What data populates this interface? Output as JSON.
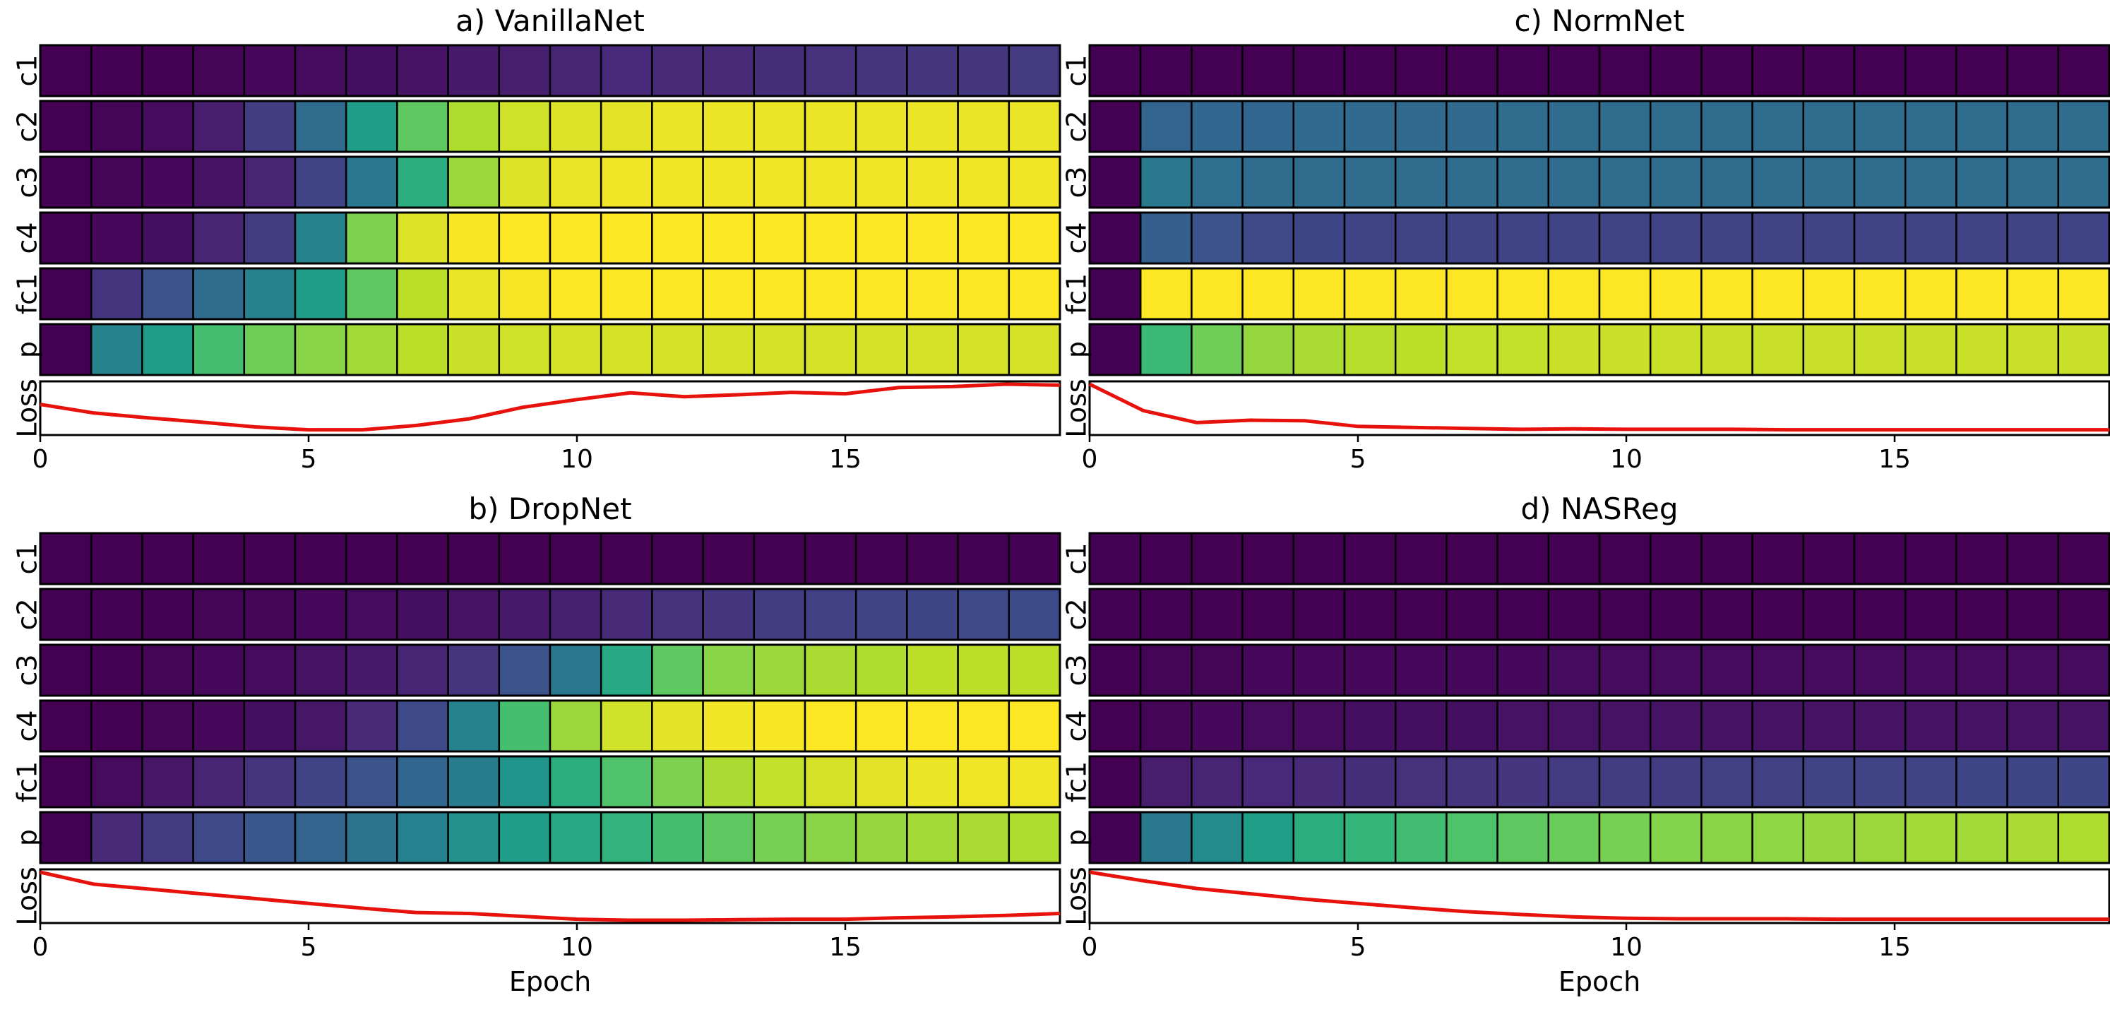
{
  "figure": {
    "row_labels": [
      "c1",
      "c2",
      "c3",
      "c4",
      "fc1",
      "p"
    ],
    "loss_label": "Loss",
    "xlabel": "Epoch",
    "xticks": [
      0,
      5,
      10,
      15
    ],
    "epochs": 19
  },
  "chart_data": [
    {
      "type": "heatmap",
      "panel": "a",
      "title": "a) VanillaNet",
      "xlabel": "",
      "xlim": [
        0,
        19
      ],
      "rows": {
        "c1": [
          0.0,
          0.0,
          0.0,
          0.01,
          0.02,
          0.03,
          0.04,
          0.05,
          0.07,
          0.08,
          0.1,
          0.11,
          0.12,
          0.12,
          0.13,
          0.14,
          0.15,
          0.16,
          0.16,
          0.17
        ],
        "c2": [
          0.0,
          0.01,
          0.03,
          0.08,
          0.18,
          0.35,
          0.55,
          0.75,
          0.88,
          0.93,
          0.95,
          0.96,
          0.97,
          0.97,
          0.97,
          0.97,
          0.97,
          0.97,
          0.97,
          0.97
        ],
        "c3": [
          0.0,
          0.01,
          0.02,
          0.05,
          0.1,
          0.2,
          0.4,
          0.62,
          0.85,
          0.95,
          0.97,
          0.98,
          0.98,
          0.98,
          0.98,
          0.98,
          0.98,
          0.98,
          0.98,
          0.98
        ],
        "c4": [
          0.0,
          0.02,
          0.04,
          0.1,
          0.18,
          0.45,
          0.8,
          0.95,
          0.99,
          1.0,
          1.0,
          1.0,
          1.0,
          1.0,
          1.0,
          1.0,
          1.0,
          1.0,
          1.0,
          1.0
        ],
        "fc1": [
          0.0,
          0.15,
          0.25,
          0.35,
          0.45,
          0.55,
          0.75,
          0.9,
          0.97,
          0.99,
          1.0,
          1.0,
          1.0,
          1.0,
          1.0,
          1.0,
          1.0,
          1.0,
          1.0,
          1.0
        ],
        "p": [
          0.0,
          0.45,
          0.55,
          0.7,
          0.78,
          0.82,
          0.86,
          0.9,
          0.92,
          0.93,
          0.94,
          0.94,
          0.94,
          0.94,
          0.94,
          0.94,
          0.94,
          0.94,
          0.94,
          0.94
        ]
      },
      "loss": [
        0.58,
        0.4,
        0.3,
        0.21,
        0.11,
        0.05,
        0.05,
        0.14,
        0.28,
        0.52,
        0.68,
        0.82,
        0.74,
        0.78,
        0.83,
        0.8,
        0.93,
        0.95,
        1.0,
        0.98
      ]
    },
    {
      "type": "heatmap",
      "panel": "b",
      "title": "b) DropNet",
      "xlabel": "Epoch",
      "xlim": [
        0,
        19
      ],
      "rows": {
        "c1": [
          0.0,
          0.0,
          0.0,
          0.0,
          0.0,
          0.0,
          0.0,
          0.0,
          0.0,
          0.0,
          0.0,
          0.0,
          0.0,
          0.0,
          0.0,
          0.0,
          0.0,
          0.0,
          0.0,
          0.0
        ],
        "c2": [
          0.0,
          0.0,
          0.0,
          0.01,
          0.01,
          0.02,
          0.03,
          0.04,
          0.05,
          0.07,
          0.09,
          0.12,
          0.14,
          0.16,
          0.18,
          0.19,
          0.2,
          0.21,
          0.22,
          0.23
        ],
        "c3": [
          0.0,
          0.0,
          0.01,
          0.02,
          0.03,
          0.05,
          0.07,
          0.1,
          0.15,
          0.25,
          0.4,
          0.6,
          0.75,
          0.82,
          0.85,
          0.87,
          0.88,
          0.9,
          0.9,
          0.9
        ],
        "c4": [
          0.0,
          0.0,
          0.01,
          0.02,
          0.04,
          0.06,
          0.12,
          0.22,
          0.45,
          0.7,
          0.85,
          0.93,
          0.96,
          0.98,
          0.99,
          1.0,
          1.0,
          1.0,
          1.0,
          1.0
        ],
        "fc1": [
          0.0,
          0.03,
          0.06,
          0.1,
          0.15,
          0.2,
          0.25,
          0.33,
          0.42,
          0.52,
          0.62,
          0.72,
          0.8,
          0.87,
          0.91,
          0.94,
          0.96,
          0.97,
          0.98,
          0.98
        ],
        "p": [
          0.0,
          0.12,
          0.17,
          0.22,
          0.27,
          0.32,
          0.38,
          0.44,
          0.5,
          0.55,
          0.6,
          0.65,
          0.7,
          0.75,
          0.79,
          0.82,
          0.84,
          0.86,
          0.87,
          0.88
        ]
      },
      "loss": [
        1.0,
        0.75,
        0.65,
        0.55,
        0.45,
        0.35,
        0.25,
        0.16,
        0.14,
        0.08,
        0.02,
        0.0,
        0.0,
        0.01,
        0.02,
        0.02,
        0.05,
        0.07,
        0.1,
        0.14
      ]
    },
    {
      "type": "heatmap",
      "panel": "c",
      "title": "c) NormNet",
      "xlabel": "",
      "xlim": [
        0,
        19
      ],
      "rows": {
        "c1": [
          0.0,
          0.0,
          0.0,
          0.0,
          0.0,
          0.0,
          0.0,
          0.0,
          0.0,
          0.0,
          0.0,
          0.0,
          0.0,
          0.0,
          0.0,
          0.0,
          0.0,
          0.0,
          0.0,
          0.0
        ],
        "c2": [
          0.0,
          0.32,
          0.33,
          0.33,
          0.34,
          0.34,
          0.34,
          0.34,
          0.35,
          0.35,
          0.35,
          0.35,
          0.35,
          0.35,
          0.35,
          0.35,
          0.35,
          0.35,
          0.35,
          0.35
        ],
        "c3": [
          0.0,
          0.4,
          0.36,
          0.35,
          0.35,
          0.35,
          0.35,
          0.35,
          0.35,
          0.35,
          0.35,
          0.35,
          0.35,
          0.35,
          0.35,
          0.35,
          0.35,
          0.35,
          0.35,
          0.35
        ],
        "c4": [
          0.0,
          0.3,
          0.25,
          0.22,
          0.21,
          0.2,
          0.2,
          0.2,
          0.2,
          0.2,
          0.2,
          0.2,
          0.2,
          0.2,
          0.2,
          0.2,
          0.2,
          0.2,
          0.2,
          0.2
        ],
        "fc1": [
          0.0,
          1.0,
          1.0,
          1.0,
          1.0,
          1.0,
          1.0,
          1.0,
          1.0,
          1.0,
          1.0,
          1.0,
          1.0,
          1.0,
          1.0,
          1.0,
          1.0,
          1.0,
          1.0,
          1.0
        ],
        "p": [
          0.0,
          0.68,
          0.78,
          0.84,
          0.87,
          0.89,
          0.9,
          0.91,
          0.91,
          0.92,
          0.92,
          0.92,
          0.92,
          0.92,
          0.92,
          0.92,
          0.92,
          0.92,
          0.92,
          0.92
        ]
      },
      "loss": [
        1.0,
        0.45,
        0.2,
        0.25,
        0.24,
        0.12,
        0.1,
        0.08,
        0.06,
        0.07,
        0.06,
        0.06,
        0.06,
        0.05,
        0.05,
        0.05,
        0.05,
        0.05,
        0.05,
        0.05
      ]
    },
    {
      "type": "heatmap",
      "panel": "d",
      "title": "d) NASReg",
      "xlabel": "Epoch",
      "xlim": [
        0,
        19
      ],
      "rows": {
        "c1": [
          0.0,
          0.0,
          0.0,
          0.0,
          0.0,
          0.0,
          0.0,
          0.0,
          0.0,
          0.0,
          0.0,
          0.0,
          0.0,
          0.0,
          0.0,
          0.0,
          0.0,
          0.0,
          0.0,
          0.0
        ],
        "c2": [
          0.0,
          0.0,
          0.0,
          0.0,
          0.0,
          0.0,
          0.0,
          0.0,
          0.0,
          0.0,
          0.0,
          0.0,
          0.0,
          0.0,
          0.0,
          0.0,
          0.0,
          0.0,
          0.0,
          0.0
        ],
        "c3": [
          0.0,
          0.01,
          0.01,
          0.02,
          0.02,
          0.02,
          0.02,
          0.02,
          0.02,
          0.03,
          0.03,
          0.03,
          0.03,
          0.03,
          0.03,
          0.03,
          0.03,
          0.03,
          0.03,
          0.03
        ],
        "c4": [
          0.0,
          0.01,
          0.02,
          0.03,
          0.03,
          0.04,
          0.04,
          0.04,
          0.05,
          0.05,
          0.05,
          0.05,
          0.05,
          0.05,
          0.05,
          0.05,
          0.05,
          0.05,
          0.05,
          0.05
        ],
        "fc1": [
          0.0,
          0.08,
          0.1,
          0.11,
          0.12,
          0.13,
          0.14,
          0.15,
          0.16,
          0.17,
          0.18,
          0.18,
          0.19,
          0.19,
          0.2,
          0.2,
          0.2,
          0.21,
          0.21,
          0.21
        ],
        "p": [
          0.0,
          0.4,
          0.48,
          0.56,
          0.62,
          0.66,
          0.69,
          0.72,
          0.75,
          0.77,
          0.79,
          0.81,
          0.82,
          0.83,
          0.84,
          0.85,
          0.86,
          0.86,
          0.87,
          0.88
        ]
      },
      "loss": [
        1.0,
        0.82,
        0.66,
        0.55,
        0.44,
        0.35,
        0.26,
        0.18,
        0.12,
        0.07,
        0.04,
        0.03,
        0.03,
        0.03,
        0.02,
        0.02,
        0.02,
        0.02,
        0.02,
        0.02
      ]
    }
  ]
}
